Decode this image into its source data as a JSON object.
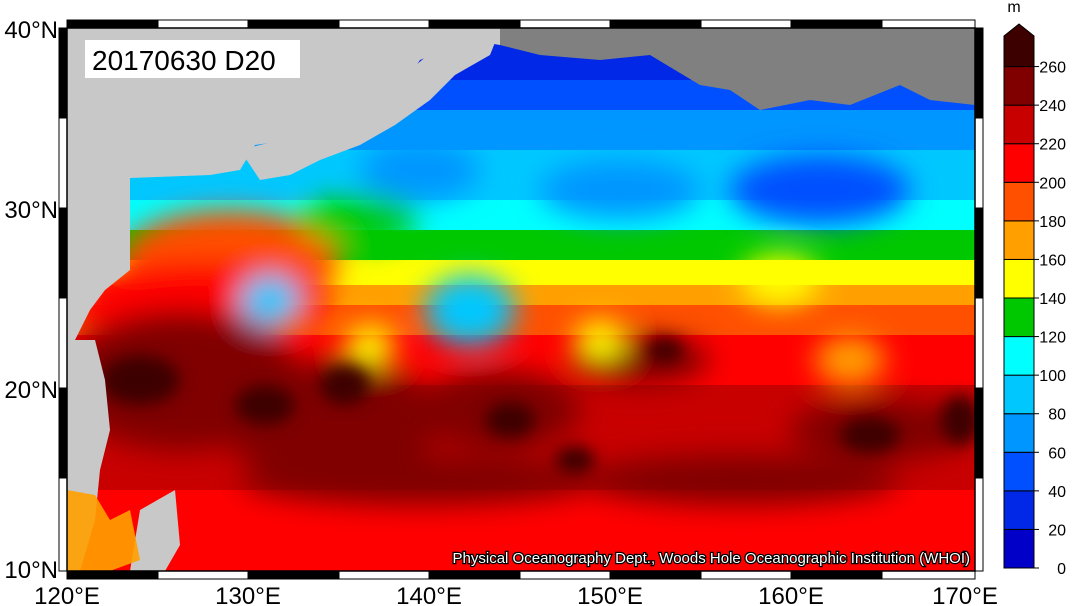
{
  "map": {
    "title": "20170630 D20",
    "credit": "Physical Oceanography Dept., Woods Hole Oceanographic Institution (WHOI)",
    "x_ticks": [
      "120°E",
      "130°E",
      "140°E",
      "150°E",
      "160°E",
      "170°E"
    ],
    "y_ticks": [
      "40°N",
      "30°N",
      "20°N",
      "10°N"
    ],
    "land_color": "#808080",
    "land_outside_color": "#c8c8c8"
  },
  "colorbar": {
    "unit": "m",
    "levels": [
      "0",
      "20",
      "40",
      "60",
      "80",
      "100",
      "120",
      "140",
      "160",
      "180",
      "200",
      "220",
      "240",
      "260"
    ],
    "colors": [
      "#0000c8",
      "#0028e6",
      "#0050ff",
      "#0096ff",
      "#00c8ff",
      "#00ffff",
      "#00c800",
      "#ffff00",
      "#ffa000",
      "#ff5000",
      "#ff0000",
      "#c80000",
      "#800000",
      "#3c0000"
    ]
  }
}
